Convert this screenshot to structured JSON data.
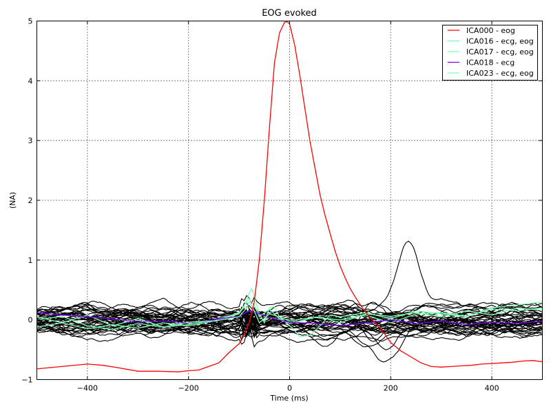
{
  "chart_data": {
    "type": "line",
    "title": "EOG evoked",
    "xlabel": "Time (ms)",
    "ylabel": "(NA)",
    "xlim": [
      -500,
      500
    ],
    "ylim": [
      -1,
      5
    ],
    "xticks": [
      -400,
      -200,
      0,
      200,
      400
    ],
    "yticks": [
      -1,
      0,
      1,
      2,
      3,
      4,
      5
    ],
    "xtick_labels": [
      "−400",
      "−200",
      "0",
      "200",
      "400"
    ],
    "ytick_labels": [
      "−1",
      "0",
      "1",
      "2",
      "3",
      "4",
      "5"
    ],
    "grid": true,
    "legend_position": "top-right",
    "series": [
      {
        "name": "ICA000 - eog",
        "color": "#ff0000",
        "x": [
          -500,
          -450,
          -400,
          -370,
          -340,
          -300,
          -260,
          -220,
          -200,
          -180,
          -160,
          -140,
          -120,
          -100,
          -90,
          -80,
          -70,
          -60,
          -50,
          -40,
          -30,
          -20,
          -10,
          -5,
          0,
          10,
          20,
          30,
          40,
          50,
          60,
          70,
          80,
          90,
          100,
          110,
          120,
          130,
          140,
          150,
          160,
          170,
          180,
          190,
          200,
          220,
          240,
          260,
          280,
          300,
          320,
          340,
          360,
          380,
          400,
          420,
          440,
          460,
          480,
          500
        ],
        "y": [
          -0.82,
          -0.78,
          -0.74,
          -0.76,
          -0.8,
          -0.86,
          -0.86,
          -0.87,
          -0.85,
          -0.84,
          -0.78,
          -0.72,
          -0.55,
          -0.4,
          -0.25,
          -0.05,
          0.3,
          1.0,
          2.0,
          3.2,
          4.3,
          4.8,
          4.98,
          4.99,
          4.95,
          4.6,
          4.1,
          3.55,
          3.0,
          2.55,
          2.1,
          1.75,
          1.45,
          1.15,
          0.9,
          0.7,
          0.52,
          0.38,
          0.25,
          0.13,
          0.03,
          -0.06,
          -0.15,
          -0.26,
          -0.38,
          -0.52,
          -0.62,
          -0.72,
          -0.78,
          -0.79,
          -0.78,
          -0.77,
          -0.76,
          -0.74,
          -0.73,
          -0.72,
          -0.71,
          -0.69,
          -0.68,
          -0.7
        ]
      },
      {
        "name": "ICA016 - ecg, eog",
        "color": "#7fffb2",
        "x": [
          -500,
          -450,
          -400,
          -350,
          -300,
          -250,
          -200,
          -150,
          -120,
          -100,
          -90,
          -80,
          -75,
          -70,
          -60,
          -50,
          -40,
          -30,
          -20,
          -10,
          0,
          10,
          20,
          40,
          60,
          80,
          100,
          150,
          200,
          250,
          300,
          350,
          400,
          450,
          500
        ],
        "y": [
          0.05,
          -0.05,
          0.08,
          -0.1,
          0.02,
          -0.12,
          -0.08,
          0.0,
          0.05,
          0.1,
          0.22,
          0.45,
          0.52,
          0.4,
          0.1,
          -0.05,
          0.2,
          0.22,
          0.05,
          -0.02,
          -0.1,
          -0.18,
          -0.28,
          -0.26,
          -0.1,
          0.08,
          0.05,
          0.12,
          0.02,
          0.15,
          0.1,
          0.05,
          0.2,
          0.25,
          0.3
        ]
      },
      {
        "name": "ICA017 - ecg, eog",
        "color": "#7fffb2",
        "x": [
          -500,
          -450,
          -400,
          -350,
          -300,
          -250,
          -200,
          -150,
          -100,
          -80,
          -70,
          -60,
          -40,
          -20,
          0,
          50,
          100,
          150,
          200,
          250,
          300,
          350,
          400,
          450,
          500
        ],
        "y": [
          -0.12,
          -0.05,
          -0.15,
          -0.08,
          -0.14,
          -0.05,
          -0.1,
          -0.02,
          0.12,
          0.35,
          0.25,
          0.05,
          0.18,
          0.02,
          -0.06,
          0.04,
          0.0,
          0.08,
          -0.05,
          0.1,
          0.12,
          0.06,
          0.18,
          0.15,
          0.2
        ]
      },
      {
        "name": "ICA018 - ecg",
        "color": "#8000ff",
        "x": [
          -500,
          -450,
          -400,
          -350,
          -300,
          -250,
          -200,
          -150,
          -100,
          -80,
          -60,
          -40,
          -20,
          0,
          50,
          100,
          150,
          200,
          250,
          300,
          350,
          400,
          450,
          500
        ],
        "y": [
          0.12,
          0.08,
          0.05,
          0.02,
          -0.04,
          -0.02,
          -0.05,
          0.0,
          0.06,
          0.15,
          0.1,
          0.04,
          0.0,
          -0.04,
          -0.06,
          -0.1,
          -0.05,
          0.0,
          -0.06,
          -0.02,
          -0.08,
          -0.04,
          -0.06,
          -0.02
        ]
      },
      {
        "name": "ICA023 - ecg, eog",
        "color": "#7fffb2",
        "x": [
          -500,
          -450,
          -400,
          -350,
          -300,
          -250,
          -200,
          -150,
          -100,
          -85,
          -80,
          -70,
          -60,
          -40,
          -20,
          0,
          30,
          60,
          100,
          150,
          200,
          250,
          300,
          350,
          400,
          450,
          500
        ],
        "y": [
          0.0,
          0.06,
          -0.1,
          -0.16,
          -0.06,
          -0.12,
          -0.04,
          -0.02,
          0.05,
          0.2,
          0.3,
          0.15,
          -0.05,
          0.1,
          0.05,
          -0.02,
          0.02,
          0.05,
          -0.05,
          0.1,
          0.06,
          0.12,
          0.05,
          0.15,
          0.08,
          0.2,
          0.16
        ]
      }
    ],
    "background_component_count": 40,
    "background_color": "#000000"
  }
}
